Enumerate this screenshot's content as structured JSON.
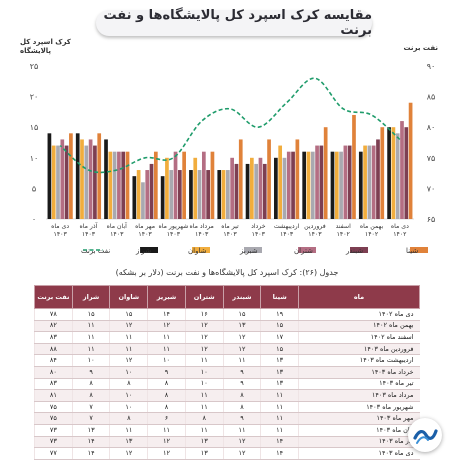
{
  "title": "مقایسه کرک اسپرد کل پالایشگاه‌ها و نفت برنت",
  "left_axis_title": "کرک اسپرد کل پالایشگاه",
  "right_axis_title": "نفت برنت",
  "table_title": "جدول (۲۶): کرک اسپرد کل پالایشگاه‌ها و نفت برنت (دلار بر بشکه)",
  "colors": {
    "شینا": "#e0823a",
    "شبندر": "#7d3f52",
    "شتران": "#b46e83",
    "شبریز": "#a9a9b0",
    "شاوان": "#f1ad3d",
    "شراز": "#1a1a1a",
    "برنت": "#1f9c6b",
    "header": "#8e3a4a"
  },
  "chart_data": {
    "type": "bar",
    "categories": [
      "دی ماه ۱۴۰۲",
      "بهمن ماه ۱۴۰۲",
      "اسفند ۱۴۰۲",
      "فروردین ۱۴۰۳",
      "اردیبهشت ۱۴۰۳",
      "خرداد ۱۴۰۳",
      "تیر ماه ۱۴۰۳",
      "مرداد ماه ۱۴۰۳",
      "شهریور ماه ۱۴۰۳",
      "مهر ماه ۱۴۰۳",
      "آبان ماه ۱۴۰۳",
      "آذر ماه ۱۴۰۳",
      "دی ماه ۱۴۰۳"
    ],
    "series": [
      {
        "name": "شینا",
        "values": [
          19,
          15,
          17,
          15,
          13,
          13,
          13,
          11,
          11,
          11,
          11,
          14,
          14
        ]
      },
      {
        "name": "شبندر",
        "values": [
          15,
          13,
          12,
          12,
          11,
          9,
          9,
          8,
          8,
          9,
          11,
          12,
          12
        ]
      },
      {
        "name": "شتران",
        "values": [
          16,
          12,
          12,
          12,
          11,
          10,
          10,
          11,
          11,
          8,
          11,
          13,
          13
        ]
      },
      {
        "name": "شبریز",
        "values": [
          14,
          12,
          11,
          11,
          10,
          9,
          8,
          8,
          8,
          6,
          11,
          12,
          12
        ]
      },
      {
        "name": "شاوان",
        "values": [
          15,
          12,
          11,
          11,
          12,
          10,
          8,
          10,
          10,
          8,
          11,
          13,
          12
        ]
      },
      {
        "name": "شراز",
        "values": [
          15,
          11,
          11,
          11,
          10,
          9,
          8,
          8,
          7,
          7,
          13,
          14,
          14
        ]
      },
      {
        "name": "نفت برنت",
        "axis": "right",
        "values": [
          78,
          82,
          83,
          88,
          84,
          80,
          83,
          81,
          75,
          75,
          73,
          73,
          77
        ]
      }
    ],
    "ylim_left": [
      0,
      25
    ],
    "yticks_left": [
      "۰",
      "۵",
      "۱۰",
      "۱۵",
      "۲۰",
      "۲۵"
    ],
    "ylim_right": [
      65,
      90
    ],
    "yticks_right": [
      "۶۵",
      "۷۰",
      "۷۵",
      "۸۰",
      "۸۵",
      "۹۰"
    ],
    "legend_labels": [
      "شینا",
      "شبندر",
      "شتران",
      "شبریز",
      "شاوان",
      "شراز",
      "نفت برنت"
    ],
    "legend_position": "bottom",
    "grid": false
  },
  "table": {
    "headers": [
      "ماه",
      "شینا",
      "شبندر",
      "شتران",
      "شبریز",
      "شاوان",
      "شراز",
      "نفت برنت"
    ],
    "rows": [
      [
        "دی ماه ۱۴۰۲",
        "۱۹",
        "۱۵",
        "۱۶",
        "۱۴",
        "۱۵",
        "۱۵",
        "۷۸"
      ],
      [
        "بهمن ماه ۱۴۰۲",
        "۱۵",
        "۱۳",
        "۱۲",
        "۱۲",
        "۱۲",
        "۱۱",
        "۸۲"
      ],
      [
        "اسفند ماه ۱۴۰۲",
        "۱۷",
        "۱۲",
        "۱۲",
        "۱۱",
        "۱۱",
        "۱۱",
        "۸۳"
      ],
      [
        "فروردین ماه ۱۴۰۳",
        "۱۵",
        "۱۲",
        "۱۲",
        "۱۱",
        "۱۱",
        "۱۱",
        "۸۸"
      ],
      [
        "اردیبهشت ماه ۱۴۰۳",
        "۱۳",
        "۱۱",
        "۱۱",
        "۱۰",
        "۱۲",
        "۱۰",
        "۸۴"
      ],
      [
        "خرداد ماه ۱۴۰۳",
        "۱۳",
        "۹",
        "۱۰",
        "۹",
        "۱۰",
        "۹",
        "۸۰"
      ],
      [
        "تیر ماه ۱۴۰۳",
        "۱۳",
        "۹",
        "۱۰",
        "۸",
        "۸",
        "۸",
        "۸۳"
      ],
      [
        "مرداد ماه ۱۴۰۳",
        "۱۱",
        "۸",
        "۱۱",
        "۸",
        "۱۰",
        "۸",
        "۸۱"
      ],
      [
        "شهریور ماه ۱۴۰۳",
        "۱۱",
        "۸",
        "۱۱",
        "۸",
        "۱۰",
        "۷",
        "۷۵"
      ],
      [
        "مهر ماه ۱۴۰۳",
        "۱۱",
        "۹",
        "۸",
        "۶",
        "۸",
        "۷",
        "۷۵"
      ],
      [
        "آبان ماه ۱۴۰۳",
        "۱۱",
        "۱۱",
        "۱۱",
        "۱۱",
        "۱۱",
        "۱۳",
        "۷۳"
      ],
      [
        "آذر ماه ۱۴۰۳",
        "۱۴",
        "۱۲",
        "۱۳",
        "۱۲",
        "۱۳",
        "۱۴",
        "۷۳"
      ],
      [
        "دی ماه ۱۴۰۳",
        "۱۴",
        "۱۲",
        "۱۳",
        "۱۲",
        "۱۲",
        "۱۴",
        "۷۷"
      ]
    ]
  }
}
